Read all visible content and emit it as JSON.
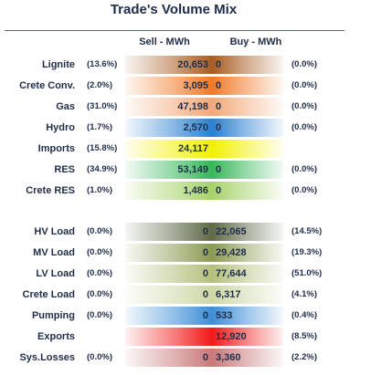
{
  "title": "Trade's Volume Mix",
  "headers": {
    "sell": "Sell - MWh",
    "buy": "Buy - MWh"
  },
  "chart_data": {
    "type": "table",
    "title": "Trade's Volume Mix",
    "columns": [
      "Sell - MWh",
      "Buy - MWh"
    ],
    "rows": [
      {
        "label": "Lignite",
        "sell_pct": "(13.6%)",
        "sell": "20,653",
        "buy": "0",
        "buy_pct": "(0.0%)",
        "sell_color": "#a95c22",
        "buy_color": "#a95c22"
      },
      {
        "label": "Crete Conv.",
        "sell_pct": "(2.0%)",
        "sell": "3,095",
        "buy": "0",
        "buy_pct": "(0.0%)",
        "sell_color": "#f07a28",
        "buy_color": "#f07a28"
      },
      {
        "label": "Gas",
        "sell_pct": "(31.0%)",
        "sell": "47,198",
        "buy": "0",
        "buy_pct": "(0.0%)",
        "sell_color": "#f3a878",
        "buy_color": "#f3a878"
      },
      {
        "label": "Hydro",
        "sell_pct": "(1.7%)",
        "sell": "2,570",
        "buy": "0",
        "buy_pct": "(0.0%)",
        "sell_color": "#2a7fd0",
        "buy_color": "#2a7fd0"
      },
      {
        "label": "Imports",
        "sell_pct": "(15.8%)",
        "sell": "24,117",
        "buy": "",
        "buy_pct": "",
        "sell_color": "#f2f000",
        "buy_color": "#f2f000"
      },
      {
        "label": "RES",
        "sell_pct": "(34.9%)",
        "sell": "53,149",
        "buy": "0",
        "buy_pct": "(0.0%)",
        "sell_color": "#36b85a",
        "buy_color": "#36b85a"
      },
      {
        "label": "Crete RES",
        "sell_pct": "(1.0%)",
        "sell": "1,486",
        "buy": "0",
        "buy_pct": "(0.0%)",
        "sell_color": "#a6d36a",
        "buy_color": "#a6d36a"
      },
      {
        "label": "HV Load",
        "sell_pct": "(0.0%)",
        "sell": "0",
        "buy": "22,065",
        "buy_pct": "(14.5%)",
        "sell_color": "#5f6a48",
        "buy_color": "#5f6a48"
      },
      {
        "label": "MV Load",
        "sell_pct": "(0.0%)",
        "sell": "0",
        "buy": "29,428",
        "buy_pct": "(19.3%)",
        "sell_color": "#8a9a52",
        "buy_color": "#8a9a52"
      },
      {
        "label": "LV Load",
        "sell_pct": "(0.0%)",
        "sell": "0",
        "buy": "77,644",
        "buy_pct": "(51.0%)",
        "sell_color": "#b4c07c",
        "buy_color": "#b4c07c"
      },
      {
        "label": "Crete Load",
        "sell_pct": "(0.0%)",
        "sell": "0",
        "buy": "6,317",
        "buy_pct": "(4.1%)",
        "sell_color": "#cdd8a6",
        "buy_color": "#cdd8a6"
      },
      {
        "label": "Pumping",
        "sell_pct": "(0.0%)",
        "sell": "0",
        "buy": "533",
        "buy_pct": "(0.4%)",
        "sell_color": "#3d8ed6",
        "buy_color": "#3d8ed6"
      },
      {
        "label": "Exports",
        "sell_pct": "",
        "sell": "",
        "buy": "12,920",
        "buy_pct": "(8.5%)",
        "sell_color": "#f21818",
        "buy_color": "#f21818"
      },
      {
        "label": "Sys.Losses",
        "sell_pct": "(0.0%)",
        "sell": "0",
        "buy": "3,360",
        "buy_pct": "(2.2%)",
        "sell_color": "#c87878",
        "buy_color": "#c87878"
      }
    ]
  }
}
